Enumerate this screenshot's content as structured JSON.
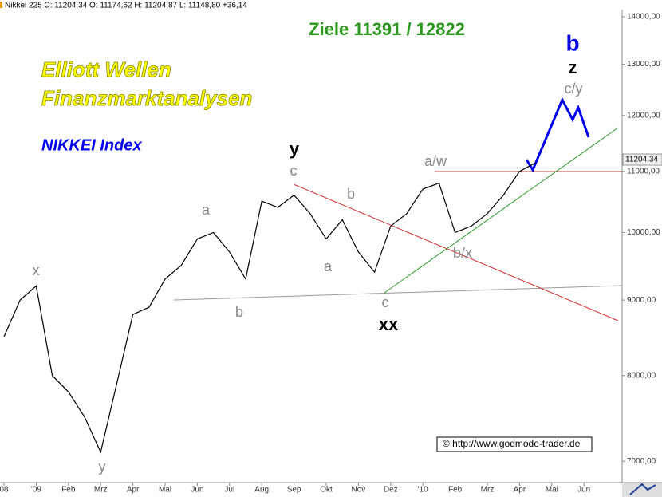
{
  "header": "Nikkei 225 C: 11204,34 O: 11174,62 H: 11204,87 L: 11148,80 +36,14",
  "chart_data": {
    "type": "line",
    "title": "Ziele 11391 / 12822",
    "subtitle": [
      "Elliott Wellen",
      "Finanzmarktanalysen"
    ],
    "index_label": "NIKKEI Index",
    "categories": [
      "08",
      null,
      "'09",
      null,
      "Feb",
      null,
      "Mrz",
      null,
      "Apr",
      null,
      "Mai",
      null,
      "Jun",
      null,
      "Jul",
      null,
      "Aug",
      null,
      "Sep",
      null,
      "Okt",
      null,
      "Nov",
      null,
      "Dez",
      null,
      "'10",
      null,
      "Feb",
      null,
      "Mrz",
      null,
      "Apr",
      null,
      "Mai",
      null,
      "Jun"
    ],
    "series": [
      {
        "name": "Nikkei 225",
        "color": "#000000",
        "values": [
          8500,
          9000,
          9200,
          8000,
          7800,
          7500,
          7100,
          7900,
          8800,
          8900,
          9300,
          9500,
          9900,
          10000,
          9700,
          9300,
          10500,
          10400,
          10600,
          10300,
          9900,
          10200,
          9700,
          9400,
          10100,
          10300,
          10700,
          10800,
          10000,
          10100,
          10300,
          10600,
          11000,
          11150,
          null,
          null,
          null
        ]
      }
    ],
    "last_price": {
      "value": 11204.34,
      "label": "11204,34"
    },
    "log_scale": true,
    "ylim": [
      6770,
      14370
    ],
    "yticks": [
      {
        "value": 7000,
        "label": "7000,00"
      },
      {
        "value": 8000,
        "label": "8000,00"
      },
      {
        "value": 9000,
        "label": "9000,00"
      },
      {
        "value": 10000,
        "label": "10000,00"
      },
      {
        "value": 11000,
        "label": "11000,00"
      },
      {
        "value": 12000,
        "label": "12000,00"
      },
      {
        "value": 13000,
        "label": "13000,00"
      },
      {
        "value": 14000,
        "label": "14000,00"
      }
    ],
    "annotations": [
      "x",
      "y",
      "a",
      "b",
      "c",
      "y",
      "b",
      "a",
      "c",
      "xx",
      "a/w",
      "b/x",
      "c/y",
      "z",
      "b"
    ],
    "copyright": "© http://www.godmode-trader.de"
  }
}
